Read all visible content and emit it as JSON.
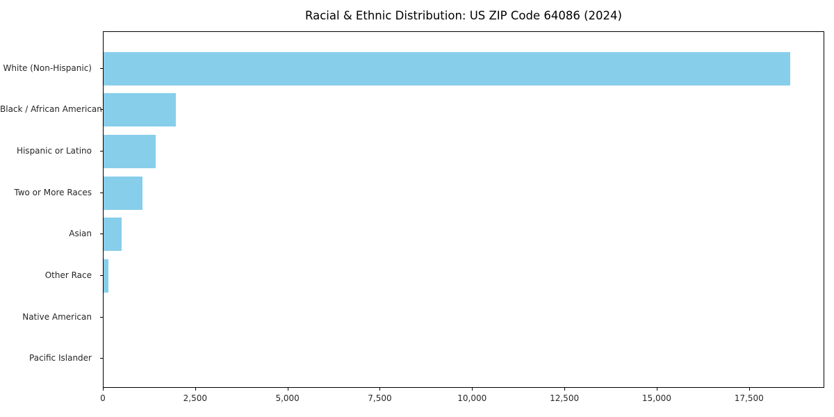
{
  "chart_data": {
    "type": "bar",
    "orientation": "horizontal",
    "title": "Racial & Ethnic Distribution: US ZIP Code 64086 (2024)",
    "categories": [
      "White (Non-Hispanic)",
      "Black / African American",
      "Hispanic or Latino",
      "Two or More Races",
      "Asian",
      "Other Race",
      "Native American",
      "Pacific Islander"
    ],
    "values": [
      18600,
      1950,
      1410,
      1050,
      490,
      140,
      0,
      0
    ],
    "xlabel": "",
    "ylabel": "",
    "xlim": [
      0,
      19500
    ],
    "x_ticks": [
      0,
      2500,
      5000,
      7500,
      10000,
      12500,
      15000,
      17500
    ],
    "x_tick_labels": [
      "0",
      "2,500",
      "5,000",
      "7,500",
      "10,000",
      "12,500",
      "15,000",
      "17,500"
    ],
    "grid": false,
    "legend": null,
    "bar_color": "#87CEEB",
    "axis_color": "#000000",
    "text_color": "#262626",
    "background_color": "#FFFFFF"
  }
}
